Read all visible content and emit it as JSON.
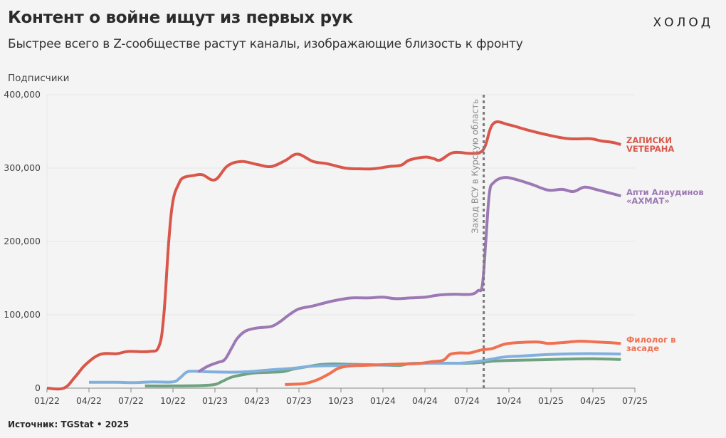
{
  "header": {
    "title": "Контент о войне ищут из первых рук",
    "subtitle": "Быстрее всего в Z-сообществе растут каналы, изображающие близость к фронту",
    "logo": "ХОЛОД"
  },
  "footer": {
    "source": "Источник: TGStat • 2025"
  },
  "chart_data": {
    "type": "line",
    "title": "Контент о войне ищут из первых рук",
    "subtitle": "Быстрее всего в Z-сообществе растут каналы, изображающие близость к фронту",
    "xlabel": "",
    "ylabel": "Подписчики",
    "x_unit": "months since 01/2022",
    "xlim": [
      0,
      42
    ],
    "ylim": [
      0,
      400000
    ],
    "grid": true,
    "x_ticks": [
      {
        "t": 0,
        "label": "01/22"
      },
      {
        "t": 3,
        "label": "04/22"
      },
      {
        "t": 6,
        "label": "07/22"
      },
      {
        "t": 9,
        "label": "10/22"
      },
      {
        "t": 12,
        "label": "01/23"
      },
      {
        "t": 15,
        "label": "04/23"
      },
      {
        "t": 18,
        "label": "07/23"
      },
      {
        "t": 21,
        "label": "10/23"
      },
      {
        "t": 24,
        "label": "01/24"
      },
      {
        "t": 27,
        "label": "04/24"
      },
      {
        "t": 30,
        "label": "07/24"
      },
      {
        "t": 33,
        "label": "10/24"
      },
      {
        "t": 36,
        "label": "01/25"
      },
      {
        "t": 39,
        "label": "04/25"
      },
      {
        "t": 42,
        "label": "07/25"
      }
    ],
    "y_ticks": [
      {
        "v": 0,
        "label": "0"
      },
      {
        "v": 100000,
        "label": "100,000"
      },
      {
        "v": 200000,
        "label": "200,000"
      },
      {
        "v": 300000,
        "label": "300,000"
      },
      {
        "v": 400000,
        "label": "400,000"
      }
    ],
    "annotations": [
      {
        "t": 31.2,
        "label": "Заход ВСУ в Курскую область",
        "style": "dashed-vertical"
      }
    ],
    "series": [
      {
        "name": "ZAПИСКИ VETEPAHA",
        "label_lines": [
          "ZAПИСКИ",
          "VETEPAHA"
        ],
        "color": "#d9574a",
        "labeled": true,
        "points": [
          [
            0,
            0
          ],
          [
            1.2,
            0
          ],
          [
            2.0,
            15000
          ],
          [
            2.75,
            32000
          ],
          [
            3.8,
            46000
          ],
          [
            5,
            47000
          ],
          [
            5.8,
            50000
          ],
          [
            7.3,
            50000
          ],
          [
            8.0,
            57000
          ],
          [
            8.35,
            100000
          ],
          [
            8.7,
            200000
          ],
          [
            9.0,
            255000
          ],
          [
            9.4,
            278000
          ],
          [
            9.75,
            287000
          ],
          [
            10.5,
            290000
          ],
          [
            11.1,
            291000
          ],
          [
            12.0,
            284000
          ],
          [
            12.9,
            303000
          ],
          [
            13.9,
            309000
          ],
          [
            15,
            305000
          ],
          [
            16,
            302000
          ],
          [
            17,
            310000
          ],
          [
            17.9,
            319000
          ],
          [
            19,
            309000
          ],
          [
            20,
            306000
          ],
          [
            21.3,
            300000
          ],
          [
            22.3,
            299000
          ],
          [
            23.3,
            299000
          ],
          [
            24.4,
            302000
          ],
          [
            25.3,
            304000
          ],
          [
            25.9,
            311000
          ],
          [
            27,
            315000
          ],
          [
            27.6,
            313000
          ],
          [
            28.1,
            311000
          ],
          [
            29,
            321000
          ],
          [
            30.2,
            320000
          ],
          [
            30.9,
            321000
          ],
          [
            31.3,
            330000
          ],
          [
            31.9,
            361000
          ],
          [
            33,
            359000
          ],
          [
            34.3,
            352000
          ],
          [
            35.8,
            345000
          ],
          [
            37.3,
            340000
          ],
          [
            38.8,
            340000
          ],
          [
            39.6,
            337000
          ],
          [
            40.4,
            335000
          ],
          [
            41,
            332000
          ]
        ]
      },
      {
        "name": "Апти Алаудинов «АХМАТ»",
        "label_lines": [
          "Апти Алаудинов",
          "«АХМАТ»"
        ],
        "color": "#9c78b4",
        "labeled": true,
        "points": [
          [
            10.8,
            22000
          ],
          [
            11.5,
            30000
          ],
          [
            12.2,
            35000
          ],
          [
            12.7,
            39000
          ],
          [
            13.2,
            55000
          ],
          [
            13.6,
            68000
          ],
          [
            14.2,
            78000
          ],
          [
            15.0,
            82000
          ],
          [
            16.0,
            84000
          ],
          [
            16.6,
            90000
          ],
          [
            17.3,
            100000
          ],
          [
            18.0,
            108000
          ],
          [
            19,
            112000
          ],
          [
            20,
            117000
          ],
          [
            21,
            121000
          ],
          [
            21.8,
            123000
          ],
          [
            23,
            123000
          ],
          [
            24,
            124000
          ],
          [
            24.9,
            122000
          ],
          [
            26,
            123000
          ],
          [
            27,
            124000
          ],
          [
            28,
            127000
          ],
          [
            29,
            128000
          ],
          [
            30.3,
            128000
          ],
          [
            30.8,
            133000
          ],
          [
            31.1,
            140000
          ],
          [
            31.35,
            200000
          ],
          [
            31.6,
            265000
          ],
          [
            31.9,
            280000
          ],
          [
            32.6,
            287000
          ],
          [
            33.4,
            285000
          ],
          [
            34.6,
            278000
          ],
          [
            35.8,
            270000
          ],
          [
            36.8,
            271000
          ],
          [
            37.6,
            268000
          ],
          [
            38.4,
            274000
          ],
          [
            39.2,
            271000
          ],
          [
            40.2,
            266000
          ],
          [
            41,
            262000
          ]
        ]
      },
      {
        "name": "Филолог в засаде",
        "label_lines": [
          "Филолог в",
          "засаде"
        ],
        "color": "#f07050",
        "labeled": true,
        "points": [
          [
            17,
            5000
          ],
          [
            18,
            5500
          ],
          [
            18.6,
            7000
          ],
          [
            19.4,
            12000
          ],
          [
            20.2,
            20000
          ],
          [
            20.8,
            27000
          ],
          [
            21.5,
            30000
          ],
          [
            22.5,
            31000
          ],
          [
            24,
            32000
          ],
          [
            25.5,
            33000
          ],
          [
            26.5,
            33500
          ],
          [
            27.5,
            36000
          ],
          [
            28.3,
            38000
          ],
          [
            28.8,
            46000
          ],
          [
            29.4,
            48000
          ],
          [
            30.2,
            48000
          ],
          [
            31,
            52000
          ],
          [
            31.8,
            54000
          ],
          [
            32.7,
            60000
          ],
          [
            33.6,
            62000
          ],
          [
            35,
            63000
          ],
          [
            35.8,
            61000
          ],
          [
            36.8,
            62000
          ],
          [
            38,
            64000
          ],
          [
            39.2,
            63000
          ],
          [
            40.2,
            62000
          ],
          [
            41,
            61000
          ]
        ]
      },
      {
        "name": "Канал (синяя линия)",
        "color": "#82b0de",
        "labeled": false,
        "points": [
          [
            3,
            8000
          ],
          [
            5,
            8000
          ],
          [
            6.2,
            7500
          ],
          [
            7.5,
            8500
          ],
          [
            9,
            8500
          ],
          [
            9.5,
            14000
          ],
          [
            10.0,
            22000
          ],
          [
            10.6,
            23000
          ],
          [
            12,
            22000
          ],
          [
            14,
            22000
          ],
          [
            16,
            25000
          ],
          [
            17.5,
            27000
          ],
          [
            19,
            30000
          ],
          [
            21,
            31000
          ],
          [
            22.5,
            31500
          ],
          [
            24,
            31500
          ],
          [
            25,
            32000
          ],
          [
            26,
            33500
          ],
          [
            28,
            34000
          ],
          [
            29.5,
            34000
          ],
          [
            31,
            37000
          ],
          [
            32.5,
            42000
          ],
          [
            34,
            44000
          ],
          [
            36,
            46000
          ],
          [
            38,
            47000
          ],
          [
            39.5,
            47000
          ],
          [
            41,
            46500
          ]
        ]
      },
      {
        "name": "Канал (зелёная линия)",
        "color": "#6fa380",
        "labeled": false,
        "points": [
          [
            7,
            3000
          ],
          [
            9,
            3000
          ],
          [
            11,
            3500
          ],
          [
            12,
            5000
          ],
          [
            12.5,
            9000
          ],
          [
            13.2,
            15000
          ],
          [
            14.2,
            19000
          ],
          [
            15,
            21000
          ],
          [
            16.5,
            22000
          ],
          [
            17,
            23000
          ],
          [
            17.6,
            26000
          ],
          [
            18.5,
            29000
          ],
          [
            19.5,
            32000
          ],
          [
            20.5,
            33000
          ],
          [
            21.5,
            32500
          ],
          [
            23,
            32000
          ],
          [
            24,
            31500
          ],
          [
            25.2,
            31000
          ],
          [
            25.9,
            33500
          ],
          [
            27,
            34000
          ],
          [
            28.5,
            34000
          ],
          [
            30,
            34000
          ],
          [
            31,
            35000
          ],
          [
            32,
            37000
          ],
          [
            33.5,
            38000
          ],
          [
            35,
            38500
          ],
          [
            37,
            39500
          ],
          [
            39,
            40000
          ],
          [
            41,
            39000
          ]
        ]
      }
    ]
  }
}
